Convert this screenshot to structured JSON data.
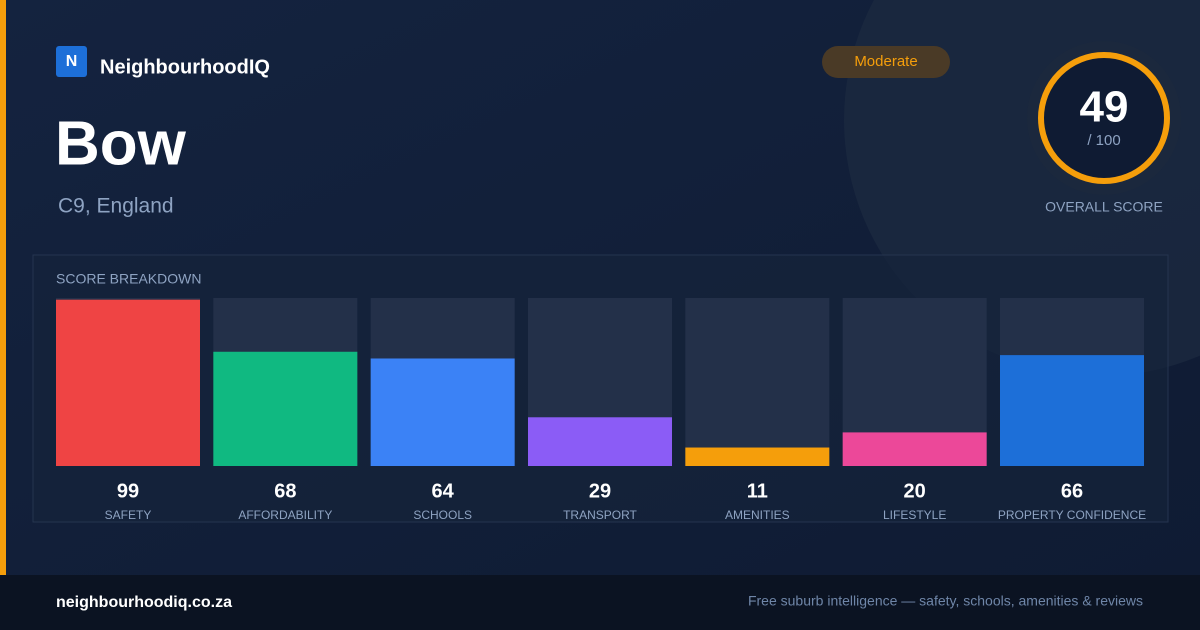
{
  "brand": {
    "logo": "N",
    "name": "NeighbourhoodIQ"
  },
  "badge": "Moderate",
  "place": {
    "name": "Bow",
    "region": "C9, England"
  },
  "overall": {
    "score": "49",
    "out_of": "/ 100",
    "label": "OVERALL SCORE"
  },
  "chart_data": {
    "type": "bar",
    "title": "SCORE BREAKDOWN",
    "categories": [
      "SAFETY",
      "AFFORDABILITY",
      "SCHOOLS",
      "TRANSPORT",
      "AMENITIES",
      "LIFESTYLE",
      "PROPERTY CONFIDENCE"
    ],
    "values": [
      99,
      68,
      64,
      29,
      11,
      20,
      66
    ],
    "colors": [
      "#ef4444",
      "#10b981",
      "#3b82f6",
      "#8b5cf6",
      "#f59e0b",
      "#ec4899",
      "#1d6fd8"
    ],
    "ylim": [
      0,
      100
    ]
  },
  "footer": {
    "site": "neighbourhoodiq.co.za",
    "tagline": "Free suburb intelligence — safety, schools, amenities & reviews"
  }
}
